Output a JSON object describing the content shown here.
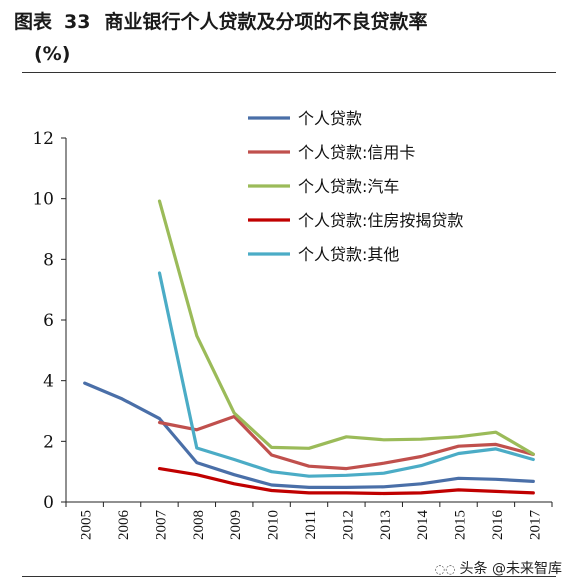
{
  "caption": {
    "label": "图表",
    "number": "33",
    "title": "商业银行个人贷款及分项的不良贷款率",
    "unit": "(%)"
  },
  "watermark": {
    "text": "头条 @未来智库",
    "icon": "chat-bubble-icon"
  },
  "chart_data": {
    "type": "line",
    "title": "商业银行个人贷款及分项的不良贷款率",
    "ylabel": "(%)",
    "xlabel": "",
    "ylim": [
      0,
      12
    ],
    "yticks": [
      0,
      2,
      4,
      6,
      8,
      10,
      12
    ],
    "categories": [
      "2005",
      "2006",
      "2007",
      "2008",
      "2009",
      "2010",
      "2011",
      "2012",
      "2013",
      "2014",
      "2015",
      "2016",
      "2017"
    ],
    "legend_position": "top-right",
    "grid": false,
    "series": [
      {
        "name": "个人贷款",
        "color": "#4a6fa8",
        "values": [
          3.92,
          3.4,
          2.75,
          1.3,
          0.9,
          0.56,
          0.48,
          0.48,
          0.5,
          0.6,
          0.78,
          0.75,
          0.68
        ]
      },
      {
        "name": "个人贷款:信用卡",
        "color": "#c0504d",
        "values": [
          null,
          null,
          2.62,
          2.38,
          2.82,
          1.55,
          1.18,
          1.1,
          1.28,
          1.5,
          1.84,
          1.9,
          1.57
        ]
      },
      {
        "name": "个人贷款:汽车",
        "color": "#9bbb59",
        "values": [
          null,
          null,
          9.92,
          5.48,
          2.93,
          1.8,
          1.77,
          2.15,
          2.05,
          2.07,
          2.15,
          2.3,
          1.58
        ]
      },
      {
        "name": "个人贷款:住房按揭贷款",
        "color": "#c00000",
        "values": [
          null,
          null,
          1.1,
          0.9,
          0.6,
          0.38,
          0.3,
          0.3,
          0.28,
          0.3,
          0.4,
          0.35,
          0.3
        ]
      },
      {
        "name": "个人贷款:其他",
        "color": "#4bacc6",
        "values": [
          null,
          null,
          7.55,
          1.78,
          1.4,
          1.0,
          0.85,
          0.88,
          0.95,
          1.2,
          1.6,
          1.75,
          1.4
        ]
      }
    ]
  }
}
